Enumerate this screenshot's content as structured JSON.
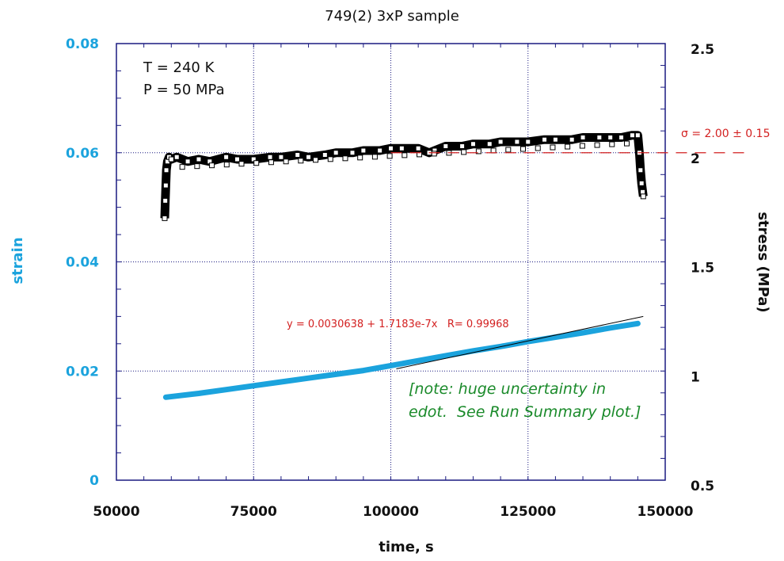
{
  "chart_data": {
    "type": "scatter",
    "title": "749(2) 3xP sample",
    "xlabel": "time, s",
    "ylabel_left": "strain",
    "ylabel_right": "stress (MPa)",
    "xlim": [
      50000,
      150000
    ],
    "ylim_left": [
      0,
      0.08
    ],
    "ylim_right": [
      0.5,
      2.5
    ],
    "x_ticks": [
      "50000",
      "75000",
      "100000",
      "125000",
      "150000"
    ],
    "y_left_ticks": [
      "0",
      "0.02",
      "0.04",
      "0.06",
      "0.08"
    ],
    "y_right_ticks": [
      "0.5",
      "1",
      "1.5",
      "2",
      "2.5"
    ],
    "grid": "dotted, major ticks",
    "conditions": [
      "T = 240 K",
      "P = 50 MPa"
    ],
    "series": [
      {
        "name": "strain",
        "axis": "left",
        "color": "#1ba3dd",
        "style": "thick line",
        "x": [
          59000,
          65000,
          70000,
          75000,
          80000,
          85000,
          90000,
          95000,
          100000,
          105000,
          110000,
          115000,
          120000,
          125000,
          130000,
          135000,
          140000,
          145000
        ],
        "y": [
          0.0152,
          0.0159,
          0.0166,
          0.0173,
          0.018,
          0.0187,
          0.0194,
          0.0201,
          0.021,
          0.0219,
          0.0228,
          0.0237,
          0.0245,
          0.0254,
          0.0262,
          0.027,
          0.0279,
          0.0287
        ]
      },
      {
        "name": "stress",
        "axis": "right",
        "color": "#000000",
        "style": "open squares",
        "x": [
          58800,
          58900,
          59000,
          59100,
          59300,
          59600,
          60000,
          61000,
          63000,
          65000,
          67000,
          70000,
          72000,
          75000,
          78000,
          80000,
          83000,
          85000,
          88000,
          90000,
          93000,
          95000,
          98000,
          100000,
          102000,
          105000,
          107000,
          108000,
          110000,
          113000,
          115000,
          118000,
          120000,
          123000,
          125000,
          128000,
          130000,
          133000,
          135000,
          138000,
          140000,
          142000,
          144000,
          145000,
          145300,
          145500,
          145700,
          145900,
          146000
        ],
        "y": [
          1.7,
          1.78,
          1.85,
          1.92,
          1.96,
          1.98,
          1.97,
          1.98,
          1.96,
          1.97,
          1.96,
          1.98,
          1.97,
          1.97,
          1.98,
          1.98,
          1.99,
          1.98,
          1.99,
          2.0,
          2.0,
          2.01,
          2.01,
          2.02,
          2.02,
          2.02,
          2.0,
          2.01,
          2.03,
          2.03,
          2.04,
          2.04,
          2.05,
          2.05,
          2.05,
          2.06,
          2.06,
          2.06,
          2.07,
          2.07,
          2.07,
          2.07,
          2.08,
          2.08,
          2.0,
          1.92,
          1.86,
          1.82,
          1.8
        ]
      }
    ],
    "annotations": {
      "fit_equation": "y = 0.0030638 + 1.7183e-7x   R= 0.99968",
      "fit_line": {
        "x": [
          101000,
          146000
        ],
        "y": [
          0.0204,
          0.03
        ],
        "axis": "left",
        "color": "#000000"
      },
      "mean_stress_label": "σ = 2.00 ± 0.15",
      "mean_stress_line": {
        "y": 2.0,
        "axis": "right",
        "x_start": 100000,
        "color": "#d32020",
        "style": "dashed"
      },
      "note_line1": "[note: huge uncertainty in",
      "note_line2": "edot.  See Run Summary plot.]"
    },
    "colors": {
      "frame": "#1a1a80",
      "grid": "#1a1a80",
      "strain": "#1ba3dd",
      "stress": "#000000",
      "fit_text": "#d32020",
      "note": "#1a8a2a"
    }
  }
}
